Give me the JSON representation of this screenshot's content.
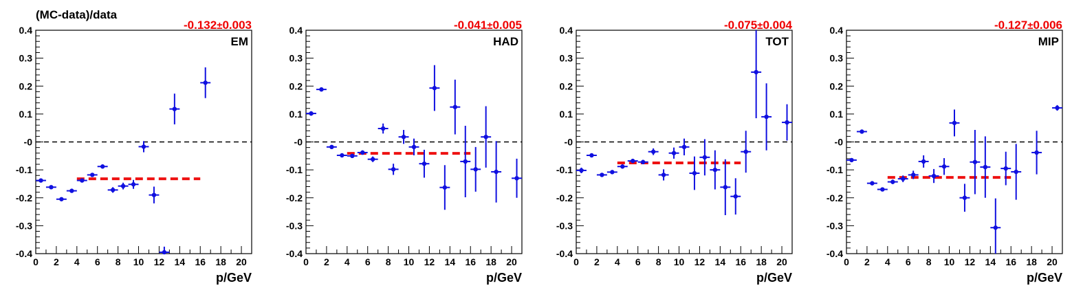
{
  "figure": {
    "ylabel": "(MC-data)/data",
    "xlabel": "p/GeV",
    "colors": {
      "points": "#1010e0",
      "fit": "#ee1111",
      "fit_text": "#ee0000",
      "reference": "#000000",
      "axis": "#000000"
    }
  },
  "chart_data": [
    {
      "type": "scatter",
      "panel_label": "EM",
      "fit_text": "-0.132",
      "fit_err_text": "0.003",
      "fit": {
        "value": -0.132,
        "x_range": [
          4,
          16
        ]
      },
      "xlim": [
        0,
        21
      ],
      "ylim": [
        -0.4,
        0.4
      ],
      "xticks": [
        0,
        2,
        4,
        6,
        8,
        10,
        12,
        14,
        16,
        18,
        20
      ],
      "yticks": [
        -0.4,
        -0.3,
        -0.2,
        -0.1,
        0,
        0.1,
        0.2,
        0.3,
        0.4
      ],
      "ytick_labels": [
        "-0.4",
        "-0.3",
        "-0.2",
        "-0.1",
        "-0",
        "0.1",
        "0.2",
        "0.3",
        "0.4"
      ],
      "reference_line": 0,
      "points": [
        {
          "x": 0.5,
          "y": -0.138,
          "err": 0.006
        },
        {
          "x": 1.5,
          "y": -0.162,
          "err": 0.006
        },
        {
          "x": 2.5,
          "y": -0.205,
          "err": 0.006
        },
        {
          "x": 3.5,
          "y": -0.175,
          "err": 0.006
        },
        {
          "x": 4.5,
          "y": -0.138,
          "err": 0.006
        },
        {
          "x": 5.5,
          "y": -0.118,
          "err": 0.006
        },
        {
          "x": 6.5,
          "y": -0.088,
          "err": 0.006
        },
        {
          "x": 7.5,
          "y": -0.172,
          "err": 0.01
        },
        {
          "x": 8.5,
          "y": -0.158,
          "err": 0.012
        },
        {
          "x": 9.5,
          "y": -0.152,
          "err": 0.016
        },
        {
          "x": 10.5,
          "y": -0.017,
          "err": 0.02
        },
        {
          "x": 11.5,
          "y": -0.19,
          "err": 0.03
        },
        {
          "x": 12.5,
          "y": -0.395,
          "err": 0.02
        },
        {
          "x": 13.5,
          "y": 0.118,
          "err": 0.055
        },
        {
          "x": 16.5,
          "y": 0.212,
          "err": 0.055
        }
      ]
    },
    {
      "type": "scatter",
      "panel_label": "HAD",
      "fit_text": "-0.041",
      "fit_err_text": "0.005",
      "fit": {
        "value": -0.041,
        "x_range": [
          4,
          16
        ]
      },
      "xlim": [
        0,
        21
      ],
      "ylim": [
        -0.4,
        0.4
      ],
      "xticks": [
        0,
        2,
        4,
        6,
        8,
        10,
        12,
        14,
        16,
        18,
        20
      ],
      "yticks": [
        -0.4,
        -0.3,
        -0.2,
        -0.1,
        0,
        0.1,
        0.2,
        0.3,
        0.4
      ],
      "ytick_labels": [
        "-0.4",
        "-0.3",
        "-0.2",
        "-0.1",
        "-0",
        "0.1",
        "0.2",
        "0.3",
        "0.4"
      ],
      "reference_line": 0,
      "points": [
        {
          "x": 0.5,
          "y": 0.102,
          "err": 0.008
        },
        {
          "x": 1.5,
          "y": 0.188,
          "err": 0.006
        },
        {
          "x": 2.5,
          "y": -0.018,
          "err": 0.006
        },
        {
          "x": 3.5,
          "y": -0.048,
          "err": 0.006
        },
        {
          "x": 4.5,
          "y": -0.05,
          "err": 0.006
        },
        {
          "x": 5.5,
          "y": -0.038,
          "err": 0.008
        },
        {
          "x": 6.5,
          "y": -0.062,
          "err": 0.01
        },
        {
          "x": 7.5,
          "y": 0.048,
          "err": 0.018
        },
        {
          "x": 8.5,
          "y": -0.098,
          "err": 0.02
        },
        {
          "x": 9.5,
          "y": 0.018,
          "err": 0.025
        },
        {
          "x": 10.5,
          "y": -0.018,
          "err": 0.03
        },
        {
          "x": 11.5,
          "y": -0.078,
          "err": 0.05
        },
        {
          "x": 12.5,
          "y": 0.193,
          "err": 0.082
        },
        {
          "x": 13.5,
          "y": -0.163,
          "err": 0.08
        },
        {
          "x": 14.5,
          "y": 0.125,
          "err": 0.098
        },
        {
          "x": 15.5,
          "y": -0.07,
          "err": 0.128
        },
        {
          "x": 16.5,
          "y": -0.098,
          "err": 0.08
        },
        {
          "x": 17.5,
          "y": 0.018,
          "err": 0.11
        },
        {
          "x": 18.5,
          "y": -0.107,
          "err": 0.11
        },
        {
          "x": 20.5,
          "y": -0.13,
          "err": 0.07
        }
      ]
    },
    {
      "type": "scatter",
      "panel_label": "TOT",
      "fit_text": "-0.075",
      "fit_err_text": "0.004",
      "fit": {
        "value": -0.075,
        "x_range": [
          4,
          16
        ]
      },
      "xlim": [
        0,
        21
      ],
      "ylim": [
        -0.4,
        0.4
      ],
      "xticks": [
        0,
        2,
        4,
        6,
        8,
        10,
        12,
        14,
        16,
        18,
        20
      ],
      "yticks": [
        -0.4,
        -0.3,
        -0.2,
        -0.1,
        0,
        0.1,
        0.2,
        0.3,
        0.4
      ],
      "ytick_labels": [
        "-0.4",
        "-0.3",
        "-0.2",
        "-0.1",
        "-0",
        "0.1",
        "0.2",
        "0.3",
        "0.4"
      ],
      "reference_line": 0,
      "points": [
        {
          "x": 0.5,
          "y": -0.102,
          "err": 0.01
        },
        {
          "x": 1.5,
          "y": -0.048,
          "err": 0.006
        },
        {
          "x": 2.5,
          "y": -0.118,
          "err": 0.006
        },
        {
          "x": 3.5,
          "y": -0.108,
          "err": 0.006
        },
        {
          "x": 4.5,
          "y": -0.088,
          "err": 0.006
        },
        {
          "x": 5.5,
          "y": -0.068,
          "err": 0.006
        },
        {
          "x": 6.5,
          "y": -0.072,
          "err": 0.008
        },
        {
          "x": 7.5,
          "y": -0.035,
          "err": 0.012
        },
        {
          "x": 8.5,
          "y": -0.118,
          "err": 0.02
        },
        {
          "x": 9.5,
          "y": -0.04,
          "err": 0.02
        },
        {
          "x": 10.5,
          "y": -0.018,
          "err": 0.03
        },
        {
          "x": 11.5,
          "y": -0.112,
          "err": 0.06
        },
        {
          "x": 12.5,
          "y": -0.055,
          "err": 0.065
        },
        {
          "x": 13.5,
          "y": -0.1,
          "err": 0.07
        },
        {
          "x": 14.5,
          "y": -0.162,
          "err": 0.1
        },
        {
          "x": 15.5,
          "y": -0.195,
          "err": 0.065
        },
        {
          "x": 16.5,
          "y": -0.035,
          "err": 0.075
        },
        {
          "x": 17.5,
          "y": 0.25,
          "err": 0.165
        },
        {
          "x": 18.5,
          "y": 0.09,
          "err": 0.12
        },
        {
          "x": 20.5,
          "y": 0.07,
          "err": 0.065
        }
      ]
    },
    {
      "type": "scatter",
      "panel_label": "MIP",
      "fit_text": "-0.127",
      "fit_err_text": "0.006",
      "fit": {
        "value": -0.127,
        "x_range": [
          4,
          16
        ]
      },
      "xlim": [
        0,
        21
      ],
      "ylim": [
        -0.4,
        0.4
      ],
      "xticks": [
        0,
        2,
        4,
        6,
        8,
        10,
        12,
        14,
        16,
        18,
        20
      ],
      "yticks": [
        -0.4,
        -0.3,
        -0.2,
        -0.1,
        0,
        0.1,
        0.2,
        0.3,
        0.4
      ],
      "ytick_labels": [
        "-0.4",
        "-0.3",
        "-0.2",
        "-0.1",
        "-0",
        "0.1",
        "0.2",
        "0.3",
        "0.4"
      ],
      "reference_line": 0,
      "points": [
        {
          "x": 0.5,
          "y": -0.065,
          "err": 0.006
        },
        {
          "x": 1.5,
          "y": 0.037,
          "err": 0.006
        },
        {
          "x": 2.5,
          "y": -0.148,
          "err": 0.006
        },
        {
          "x": 3.5,
          "y": -0.17,
          "err": 0.006
        },
        {
          "x": 4.5,
          "y": -0.143,
          "err": 0.008
        },
        {
          "x": 5.5,
          "y": -0.132,
          "err": 0.012
        },
        {
          "x": 6.5,
          "y": -0.118,
          "err": 0.015
        },
        {
          "x": 7.5,
          "y": -0.07,
          "err": 0.022
        },
        {
          "x": 8.5,
          "y": -0.122,
          "err": 0.025
        },
        {
          "x": 9.5,
          "y": -0.088,
          "err": 0.03
        },
        {
          "x": 10.5,
          "y": 0.068,
          "err": 0.048
        },
        {
          "x": 11.5,
          "y": -0.2,
          "err": 0.05
        },
        {
          "x": 12.5,
          "y": -0.072,
          "err": 0.115
        },
        {
          "x": 13.5,
          "y": -0.09,
          "err": 0.11
        },
        {
          "x": 14.5,
          "y": -0.307,
          "err": 0.105
        },
        {
          "x": 15.5,
          "y": -0.095,
          "err": 0.06
        },
        {
          "x": 16.5,
          "y": -0.107,
          "err": 0.1
        },
        {
          "x": 18.5,
          "y": -0.038,
          "err": 0.078
        },
        {
          "x": 20.5,
          "y": 0.122,
          "err": 0.01
        }
      ]
    }
  ]
}
